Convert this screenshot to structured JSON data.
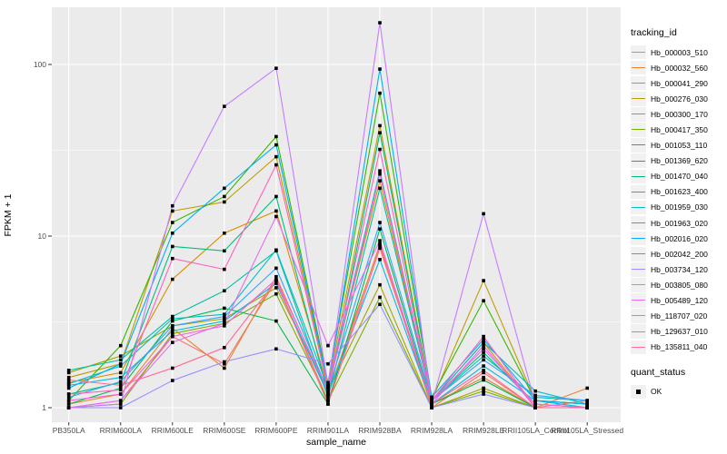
{
  "chart_data": {
    "type": "line",
    "title": "",
    "xlabel": "sample_name",
    "ylabel": "FPKM + 1",
    "y_scale": "log10",
    "y_ticks": [
      1,
      10,
      100
    ],
    "y_tick_labels": [
      "1",
      "10",
      "100"
    ],
    "y_minor_ticks": [
      3.1623,
      31.623
    ],
    "ylim": [
      1,
      220
    ],
    "grid": "on",
    "legend_position": "right",
    "panel_color": "#EBEBEB",
    "grid_color": "#FFFFFF",
    "point_color": "#000000",
    "categories": [
      "PB350LA",
      "RRIM600LA",
      "RRIM600LE",
      "RRIM600SE",
      "RRIM600PE",
      "RRIM901LA",
      "RRIM928BA",
      "RRIM928LA",
      "RRIM928LE",
      "RRII105LA_Control",
      "RRII105LA_Stressed"
    ],
    "series": [
      {
        "name": "Hb_000003_510",
        "color": "#F8766D",
        "values": [
          1.0,
          1.1,
          2.6,
          1.8,
          5.5,
          1.1,
          9.0,
          1.0,
          1.6,
          1.0,
          1.1
        ]
      },
      {
        "name": "Hb_000032_560",
        "color": "#EA8331",
        "values": [
          1.05,
          1.2,
          2.9,
          1.7,
          5.8,
          1.2,
          8.8,
          1.05,
          1.5,
          1.0,
          1.3
        ]
      },
      {
        "name": "Hb_000041_290",
        "color": "#D89000",
        "values": [
          1.4,
          1.6,
          5.6,
          10.4,
          14.0,
          1.3,
          21.0,
          1.1,
          2.4,
          1.0,
          1.0
        ]
      },
      {
        "name": "Hb_000276_030",
        "color": "#C09B00",
        "values": [
          1.5,
          1.8,
          14.0,
          15.8,
          29.0,
          1.35,
          44.0,
          1.1,
          5.5,
          1.1,
          1.05
        ]
      },
      {
        "name": "Hb_000300_170",
        "color": "#A3A500",
        "values": [
          1.6,
          2.0,
          3.0,
          3.3,
          5.0,
          1.25,
          5.2,
          1.0,
          1.3,
          1.0,
          1.0
        ]
      },
      {
        "name": "Hb_000417_350",
        "color": "#7CAE00",
        "values": [
          1.0,
          1.05,
          2.7,
          3.1,
          4.6,
          1.1,
          4.4,
          1.0,
          1.25,
          1.0,
          1.0
        ]
      },
      {
        "name": "Hb_001053_110",
        "color": "#39B600",
        "values": [
          1.1,
          2.3,
          12.0,
          17.0,
          38.0,
          1.4,
          68.0,
          1.15,
          4.2,
          1.1,
          1.05
        ]
      },
      {
        "name": "Hb_001369_620",
        "color": "#00BB4E",
        "values": [
          1.05,
          1.3,
          3.2,
          3.8,
          3.2,
          1.05,
          11.0,
          1.05,
          1.45,
          1.0,
          1.0
        ]
      },
      {
        "name": "Hb_001470_040",
        "color": "#00BF7D",
        "values": [
          1.2,
          1.4,
          8.7,
          8.2,
          17.0,
          1.2,
          40.0,
          1.1,
          2.1,
          1.05,
          1.0
        ]
      },
      {
        "name": "Hb_001623_400",
        "color": "#00C1A3",
        "values": [
          1.65,
          1.9,
          3.4,
          4.8,
          8.2,
          1.15,
          19.0,
          1.1,
          2.0,
          1.15,
          1.1
        ]
      },
      {
        "name": "Hb_001959_030",
        "color": "#00BFC4",
        "values": [
          1.38,
          1.75,
          3.3,
          3.5,
          8.3,
          1.3,
          24.0,
          1.1,
          2.4,
          1.25,
          1.05
        ]
      },
      {
        "name": "Hb_001963_020",
        "color": "#00BAE0",
        "values": [
          1.35,
          1.5,
          2.8,
          3.2,
          5.3,
          1.2,
          7.3,
          1.05,
          1.75,
          1.1,
          1.0
        ]
      },
      {
        "name": "Hb_002016_020",
        "color": "#00B0F6",
        "values": [
          1.3,
          1.8,
          10.4,
          19.0,
          34.0,
          1.35,
          94.0,
          1.15,
          2.5,
          1.1,
          1.05
        ]
      },
      {
        "name": "Hb_002042_200",
        "color": "#35A2FF",
        "values": [
          1.15,
          1.42,
          3.0,
          3.4,
          6.5,
          1.25,
          12.0,
          1.1,
          1.9,
          1.18,
          1.1
        ]
      },
      {
        "name": "Hb_003734_120",
        "color": "#9590FF",
        "values": [
          1.0,
          1.0,
          1.44,
          1.85,
          2.2,
          1.8,
          4.0,
          1.0,
          1.2,
          1.0,
          1.0
        ]
      },
      {
        "name": "Hb_003805_080",
        "color": "#C77CFF",
        "values": [
          1.0,
          1.05,
          15.0,
          57.0,
          95.0,
          1.35,
          175.0,
          1.05,
          13.5,
          1.05,
          1.0
        ]
      },
      {
        "name": "Hb_005489_120",
        "color": "#E76BF3",
        "values": [
          1.0,
          1.1,
          2.4,
          3.1,
          13.0,
          2.3,
          9.4,
          1.05,
          2.3,
          1.0,
          1.0
        ]
      },
      {
        "name": "Hb_118707_020",
        "color": "#FA62DB",
        "values": [
          1.1,
          1.2,
          2.6,
          3.0,
          5.6,
          1.25,
          23.0,
          1.1,
          2.2,
          1.05,
          1.0
        ]
      },
      {
        "name": "Hb_129637_010",
        "color": "#FF62BC",
        "values": [
          1.2,
          1.27,
          7.4,
          6.4,
          26.0,
          1.3,
          32.0,
          1.1,
          2.6,
          1.0,
          1.0
        ]
      },
      {
        "name": "Hb_135811_040",
        "color": "#FF6A98",
        "values": [
          1.45,
          1.35,
          1.7,
          2.24,
          5.5,
          1.05,
          8.5,
          1.05,
          1.65,
          1.0,
          1.0
        ]
      }
    ],
    "legend": {
      "tracking_title": "tracking_id",
      "quant_title": "quant_status",
      "quant_ok_label": "OK",
      "quant_marker": "black-square"
    }
  }
}
